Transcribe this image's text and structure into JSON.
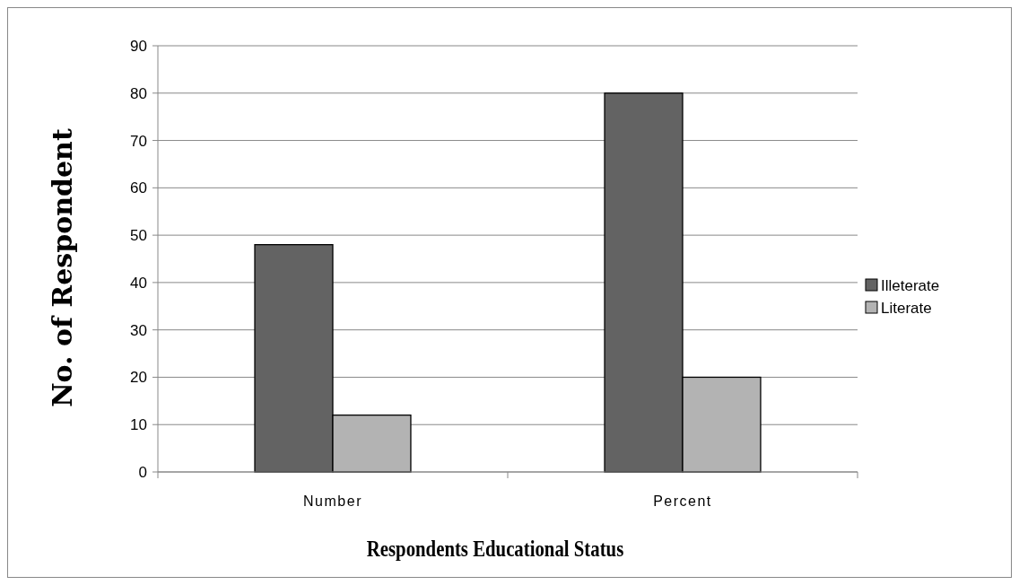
{
  "chart_data": {
    "type": "bar",
    "xlabel": "Respondents Educational Status",
    "ylabel": "No. of Respondent",
    "categories": [
      "Number",
      "Percent"
    ],
    "series": [
      {
        "name": "Illeterate",
        "color": "#636363",
        "values": [
          48,
          80
        ]
      },
      {
        "name": "Literate",
        "color": "#b3b3b3",
        "values": [
          12,
          20
        ]
      }
    ],
    "ylim": [
      0,
      90
    ],
    "yticks": [
      0,
      10,
      20,
      30,
      40,
      50,
      60,
      70,
      80,
      90
    ],
    "grid": "y",
    "legend": "right"
  }
}
